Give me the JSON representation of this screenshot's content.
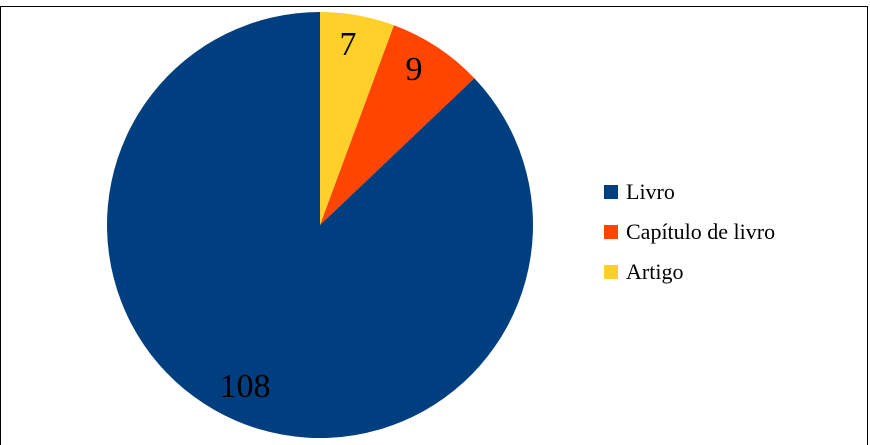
{
  "chart_data": {
    "type": "pie",
    "title": "",
    "categories": [
      "Livro",
      "Capítulo de livro",
      "Artigo"
    ],
    "values": [
      108,
      9,
      7
    ],
    "data_labels": [
      "108",
      "9",
      "7"
    ],
    "colors": [
      "#003F7F",
      "#FF4500",
      "#FFD02A"
    ],
    "start": "12 o'clock",
    "direction": "clockwise",
    "order_drawn_clockwise_from_top": [
      "Artigo",
      "Capítulo de livro",
      "Livro"
    ],
    "legend_position": "right"
  },
  "legend": {
    "items": [
      {
        "label": "Livro",
        "color": "#003F7F"
      },
      {
        "label": "Capítulo de livro",
        "color": "#FF4500"
      },
      {
        "label": "Artigo",
        "color": "#FFD02A"
      }
    ]
  }
}
